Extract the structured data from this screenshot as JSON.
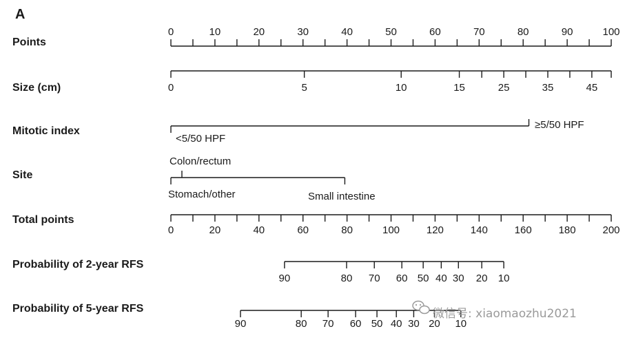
{
  "panel_label": "A",
  "watermark": {
    "icon": "wechat-icon",
    "text": "微信号: xiaomaozhu2021"
  },
  "chart_data": {
    "type": "nomogram",
    "scales": [
      {
        "id": "points",
        "label": "Points",
        "ticks": [
          0,
          5,
          10,
          15,
          20,
          25,
          30,
          35,
          40,
          45,
          50,
          55,
          60,
          65,
          70,
          75,
          80,
          85,
          90,
          95,
          100
        ],
        "tick_labels": [
          {
            "value": 0,
            "text": "0"
          },
          {
            "value": 10,
            "text": "10"
          },
          {
            "value": 20,
            "text": "20"
          },
          {
            "value": 30,
            "text": "30"
          },
          {
            "value": 40,
            "text": "40"
          },
          {
            "value": 50,
            "text": "50"
          },
          {
            "value": 60,
            "text": "60"
          },
          {
            "value": 70,
            "text": "70"
          },
          {
            "value": 80,
            "text": "80"
          },
          {
            "value": 90,
            "text": "90"
          },
          {
            "value": 100,
            "text": "100"
          }
        ]
      },
      {
        "id": "size",
        "label": "Size (cm)",
        "ticks": [
          {
            "value": "0",
            "points": 0
          },
          {
            "value": "5",
            "points": 30.3
          },
          {
            "value": "10",
            "points": 52.3
          },
          {
            "value": "15",
            "points": 65.5
          },
          {
            "value": "20",
            "points": 70.6
          },
          {
            "value": "25",
            "points": 75.6
          },
          {
            "value": "30",
            "points": 80.6
          },
          {
            "value": "35",
            "points": 85.6
          },
          {
            "value": "40",
            "points": 90.6
          },
          {
            "value": "45",
            "points": 95.6
          },
          {
            "value": "50",
            "points": 100
          }
        ],
        "tick_labels": [
          {
            "text": "0",
            "points": 0
          },
          {
            "text": "5",
            "points": 30.3
          },
          {
            "text": "10",
            "points": 52.3
          },
          {
            "text": "15",
            "points": 65.5
          },
          {
            "text": "25",
            "points": 75.6
          },
          {
            "text": "35",
            "points": 85.6
          },
          {
            "text": "45",
            "points": 95.6
          }
        ]
      },
      {
        "id": "mitotic",
        "label": "Mitotic index",
        "categories": [
          {
            "text": "<5/50 HPF",
            "points": 0
          },
          {
            "text": "≥5/50 HPF",
            "points": 81.3
          }
        ]
      },
      {
        "id": "site",
        "label": "Site",
        "categories": [
          {
            "text": "Stomach/other",
            "points": 0
          },
          {
            "text": "Colon/rectum",
            "points": 2.5
          },
          {
            "text": "Small intestine",
            "points": 39.5
          }
        ]
      },
      {
        "id": "total",
        "label": "Total points",
        "ticks": [
          0,
          10,
          20,
          30,
          40,
          50,
          60,
          70,
          80,
          90,
          100,
          110,
          120,
          130,
          140,
          150,
          160,
          170,
          180,
          190,
          200
        ],
        "tick_labels": [
          {
            "value": 0,
            "text": "0"
          },
          {
            "value": 20,
            "text": "20"
          },
          {
            "value": 40,
            "text": "40"
          },
          {
            "value": 60,
            "text": "60"
          },
          {
            "value": 80,
            "text": "80"
          },
          {
            "value": 100,
            "text": "100"
          },
          {
            "value": 120,
            "text": "120"
          },
          {
            "value": 140,
            "text": "140"
          },
          {
            "value": 160,
            "text": "160"
          },
          {
            "value": 180,
            "text": "180"
          },
          {
            "value": 200,
            "text": "200"
          }
        ]
      },
      {
        "id": "rfs2",
        "label": "Probability of 2-year RFS",
        "ticks": [
          {
            "value": "90",
            "total": 51.6
          },
          {
            "value": "80",
            "total": 79.8
          },
          {
            "value": "70",
            "total": 92.4
          },
          {
            "value": "60",
            "total": 104.9
          },
          {
            "value": "50",
            "total": 114.6
          },
          {
            "value": "40",
            "total": 122.8
          },
          {
            "value": "30",
            "total": 130.6
          },
          {
            "value": "20",
            "total": 141.2
          },
          {
            "value": "10",
            "total": 151.2
          }
        ],
        "tick_labels": [
          {
            "text": "90",
            "total": 51.6
          },
          {
            "text": "80",
            "total": 79.8
          },
          {
            "text": "70",
            "total": 92.4
          },
          {
            "text": "60",
            "total": 104.9
          },
          {
            "text": "50",
            "total": 114.6
          },
          {
            "text": "40",
            "total": 122.8
          },
          {
            "text": "30",
            "total": 130.6
          },
          {
            "text": "20",
            "total": 141.2
          },
          {
            "text": "10",
            "total": 151.2
          }
        ]
      },
      {
        "id": "rfs5",
        "label": "Probability of 5-year RFS",
        "ticks": [
          {
            "value": "90",
            "total": 31.6
          },
          {
            "value": "80",
            "total": 59.2
          },
          {
            "value": "70",
            "total": 71.4
          },
          {
            "value": "60",
            "total": 83.9
          },
          {
            "value": "50",
            "total": 93.6
          },
          {
            "value": "40",
            "total": 102.4
          },
          {
            "value": "30",
            "total": 110.3
          },
          {
            "value": "20",
            "total": 119.7
          },
          {
            "value": "10",
            "total": 131.7
          }
        ],
        "tick_labels": [
          {
            "text": "90",
            "total": 31.6
          },
          {
            "text": "80",
            "total": 59.2
          },
          {
            "text": "70",
            "total": 71.4
          },
          {
            "text": "60",
            "total": 83.9
          },
          {
            "text": "50",
            "total": 93.6
          },
          {
            "text": "40",
            "total": 102.4
          },
          {
            "text": "30",
            "total": 110.3
          },
          {
            "text": "20",
            "total": 119.7
          },
          {
            "text": "10",
            "total": 131.7
          }
        ]
      }
    ]
  }
}
